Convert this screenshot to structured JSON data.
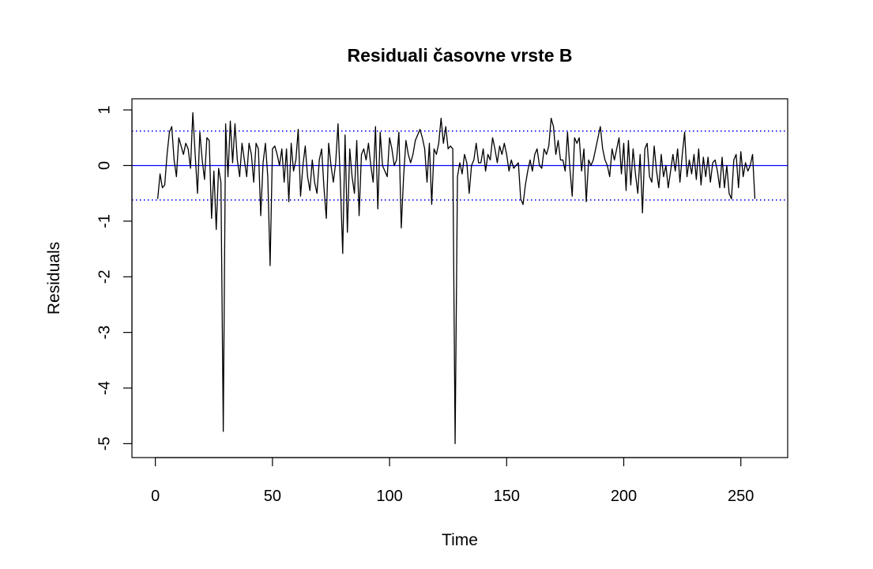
{
  "chart_data": {
    "type": "line",
    "title": "Residuali časovne vrste B",
    "xlabel": "Time",
    "ylabel": "Residuals",
    "xlim": [
      -10,
      270
    ],
    "ylim": [
      -5.25,
      1.2
    ],
    "x_ticks": [
      0,
      50,
      100,
      150,
      200,
      250
    ],
    "x_tick_labels": [
      "0",
      "50",
      "100",
      "150",
      "200",
      "250"
    ],
    "y_ticks": [
      -5,
      -4,
      -3,
      -2,
      -1,
      0,
      1
    ],
    "y_tick_labels": [
      "-5",
      "-4",
      "-3",
      "-2",
      "-1",
      "0",
      "1"
    ],
    "grid": false,
    "reference_lines": [
      {
        "y": 0,
        "style": "solid",
        "color": "#0000ff"
      },
      {
        "y": 0.62,
        "style": "dotted",
        "color": "#0000ff"
      },
      {
        "y": -0.62,
        "style": "dotted",
        "color": "#0000ff"
      }
    ],
    "series": [
      {
        "color": "#000000",
        "x_start": 1,
        "x_step": 1,
        "values": [
          -0.6,
          -0.15,
          -0.4,
          -0.35,
          0.2,
          0.6,
          0.7,
          0.1,
          -0.2,
          0.5,
          0.35,
          0.2,
          0.4,
          0.3,
          -0.05,
          0.95,
          0.2,
          -0.5,
          0.6,
          0.1,
          -0.25,
          0.5,
          0.45,
          -0.95,
          -0.1,
          -1.15,
          -0.05,
          -0.3,
          -4.78,
          0.75,
          -0.2,
          0.8,
          0.05,
          0.75,
          0.1,
          -0.2,
          0.4,
          0.1,
          -0.2,
          0.4,
          0.2,
          -0.3,
          0.4,
          0.3,
          -0.9,
          0.05,
          0.4,
          -0.2,
          -1.8,
          0.3,
          0.35,
          0.2,
          0.0,
          0.3,
          -0.3,
          0.3,
          -0.65,
          0.4,
          -0.1,
          0.1,
          0.65,
          -0.55,
          0.0,
          0.35,
          -0.2,
          -0.45,
          0.1,
          -0.3,
          -0.5,
          0.1,
          0.3,
          -0.4,
          -0.95,
          0.4,
          0.0,
          -0.3,
          0.05,
          0.75,
          -0.3,
          -1.58,
          0.55,
          -1.2,
          0.3,
          -0.2,
          -0.5,
          0.45,
          -0.9,
          0.2,
          0.3,
          0.1,
          0.4,
          0.0,
          -0.3,
          0.7,
          -0.78,
          0.6,
          0.0,
          -0.1,
          -0.2,
          0.5,
          0.3,
          0.0,
          0.1,
          0.6,
          -1.12,
          -0.2,
          0.45,
          0.2,
          0.05,
          0.2,
          0.45,
          0.55,
          0.65,
          0.5,
          0.3,
          -0.3,
          0.4,
          -0.7,
          0.3,
          0.2,
          0.4,
          0.85,
          0.4,
          0.7,
          0.3,
          0.35,
          0.3,
          -5.0,
          -0.2,
          0.05,
          -0.15,
          0.2,
          0.05,
          -0.5,
          0.0,
          0.1,
          0.4,
          0.05,
          0.05,
          0.3,
          -0.1,
          0.2,
          0.1,
          0.5,
          0.3,
          0.05,
          0.35,
          0.2,
          0.4,
          0.2,
          -0.1,
          0.1,
          -0.05,
          0.0,
          0.05,
          -0.6,
          -0.7,
          -0.35,
          -0.1,
          0.1,
          -0.1,
          0.2,
          0.3,
          0.0,
          -0.05,
          0.3,
          0.2,
          0.35,
          0.85,
          0.7,
          0.2,
          0.45,
          0.1,
          0.1,
          -0.1,
          0.6,
          -0.05,
          -0.55,
          0.5,
          0.4,
          0.5,
          -0.1,
          0.3,
          -0.65,
          0.1,
          0.0,
          0.1,
          0.3,
          0.5,
          0.7,
          0.3,
          0.1,
          0.0,
          -0.2,
          0.3,
          0.1,
          0.3,
          0.5,
          -0.15,
          0.4,
          -0.45,
          0.45,
          -0.35,
          0.3,
          -0.15,
          -0.5,
          0.2,
          -0.85,
          0.3,
          0.4,
          -0.2,
          -0.3,
          0.35,
          -0.1,
          -0.4,
          0.2,
          -0.2,
          0.0,
          -0.4,
          -0.1,
          0.2,
          -0.1,
          0.3,
          -0.3,
          0.2,
          0.6,
          -0.2,
          0.1,
          -0.15,
          0.2,
          -0.25,
          0.3,
          -0.35,
          0.15,
          -0.2,
          0.15,
          -0.3,
          0.05,
          0.1,
          -0.1,
          -0.4,
          0.15,
          -0.4,
          0.0,
          -0.5,
          -0.6,
          0.1,
          0.2,
          -0.4,
          0.25,
          -0.2,
          0.05,
          -0.1,
          0.0,
          0.2,
          -0.6
        ]
      }
    ]
  }
}
